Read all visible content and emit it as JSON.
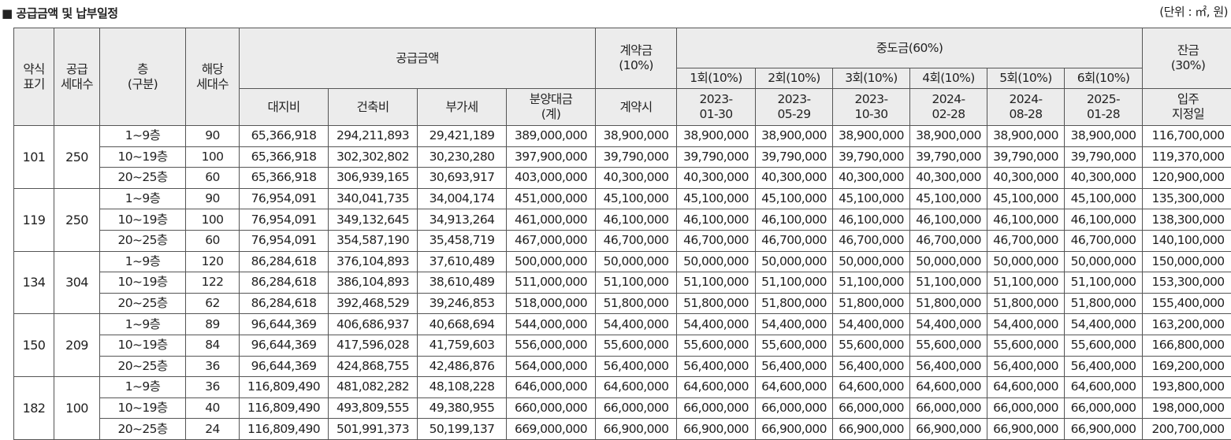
{
  "title": "■ 공급금액 및 납부일정",
  "unit": "(단위 : ㎡, 원)",
  "headers": {
    "type": "약식\n표기",
    "households": "공급\n세대수",
    "floor": "층\n(구분)",
    "units": "해당\n세대수",
    "supply": "공급금액",
    "land": "대지비",
    "building": "건축비",
    "vat": "부가세",
    "total": "분양대금\n(계)",
    "deposit": "계약금\n(10%)",
    "deposit_when": "계약시",
    "middle": "중도금(60%)",
    "middle_items": [
      {
        "label": "1회(10%)",
        "date": "2023-\n01-30"
      },
      {
        "label": "2회(10%)",
        "date": "2023-\n05-29"
      },
      {
        "label": "3회(10%)",
        "date": "2023-\n10-30"
      },
      {
        "label": "4회(10%)",
        "date": "2024-\n02-28"
      },
      {
        "label": "5회(10%)",
        "date": "2024-\n08-28"
      },
      {
        "label": "6회(10%)",
        "date": "2025-\n01-28"
      }
    ],
    "balance": "잔금\n(30%)",
    "balance_when": "입주\n지정일"
  },
  "groups": [
    {
      "type": "101",
      "households": "250",
      "rows": [
        {
          "floor": "1~9층",
          "units": "90",
          "land": "65,366,918",
          "building": "294,211,893",
          "vat": "29,421,189",
          "total": "389,000,000",
          "deposit": "38,900,000",
          "middle": [
            "38,900,000",
            "38,900,000",
            "38,900,000",
            "38,900,000",
            "38,900,000",
            "38,900,000"
          ],
          "balance": "116,700,000"
        },
        {
          "floor": "10~19층",
          "units": "100",
          "land": "65,366,918",
          "building": "302,302,802",
          "vat": "30,230,280",
          "total": "397,900,000",
          "deposit": "39,790,000",
          "middle": [
            "39,790,000",
            "39,790,000",
            "39,790,000",
            "39,790,000",
            "39,790,000",
            "39,790,000"
          ],
          "balance": "119,370,000"
        },
        {
          "floor": "20~25층",
          "units": "60",
          "land": "65,366,918",
          "building": "306,939,165",
          "vat": "30,693,917",
          "total": "403,000,000",
          "deposit": "40,300,000",
          "middle": [
            "40,300,000",
            "40,300,000",
            "40,300,000",
            "40,300,000",
            "40,300,000",
            "40,300,000"
          ],
          "balance": "120,900,000"
        }
      ]
    },
    {
      "type": "119",
      "households": "250",
      "rows": [
        {
          "floor": "1~9층",
          "units": "90",
          "land": "76,954,091",
          "building": "340,041,735",
          "vat": "34,004,174",
          "total": "451,000,000",
          "deposit": "45,100,000",
          "middle": [
            "45,100,000",
            "45,100,000",
            "45,100,000",
            "45,100,000",
            "45,100,000",
            "45,100,000"
          ],
          "balance": "135,300,000"
        },
        {
          "floor": "10~19층",
          "units": "100",
          "land": "76,954,091",
          "building": "349,132,645",
          "vat": "34,913,264",
          "total": "461,000,000",
          "deposit": "46,100,000",
          "middle": [
            "46,100,000",
            "46,100,000",
            "46,100,000",
            "46,100,000",
            "46,100,000",
            "46,100,000"
          ],
          "balance": "138,300,000"
        },
        {
          "floor": "20~25층",
          "units": "60",
          "land": "76,954,091",
          "building": "354,587,190",
          "vat": "35,458,719",
          "total": "467,000,000",
          "deposit": "46,700,000",
          "middle": [
            "46,700,000",
            "46,700,000",
            "46,700,000",
            "46,700,000",
            "46,700,000",
            "46,700,000"
          ],
          "balance": "140,100,000"
        }
      ]
    },
    {
      "type": "134",
      "households": "304",
      "rows": [
        {
          "floor": "1~9층",
          "units": "120",
          "land": "86,284,618",
          "building": "376,104,893",
          "vat": "37,610,489",
          "total": "500,000,000",
          "deposit": "50,000,000",
          "middle": [
            "50,000,000",
            "50,000,000",
            "50,000,000",
            "50,000,000",
            "50,000,000",
            "50,000,000"
          ],
          "balance": "150,000,000"
        },
        {
          "floor": "10~19층",
          "units": "122",
          "land": "86,284,618",
          "building": "386,104,893",
          "vat": "38,610,489",
          "total": "511,000,000",
          "deposit": "51,100,000",
          "middle": [
            "51,100,000",
            "51,100,000",
            "51,100,000",
            "51,100,000",
            "51,100,000",
            "51,100,000"
          ],
          "balance": "153,300,000"
        },
        {
          "floor": "20~25층",
          "units": "62",
          "land": "86,284,618",
          "building": "392,468,529",
          "vat": "39,246,853",
          "total": "518,000,000",
          "deposit": "51,800,000",
          "middle": [
            "51,800,000",
            "51,800,000",
            "51,800,000",
            "51,800,000",
            "51,800,000",
            "51,800,000"
          ],
          "balance": "155,400,000"
        }
      ]
    },
    {
      "type": "150",
      "households": "209",
      "rows": [
        {
          "floor": "1~9층",
          "units": "89",
          "land": "96,644,369",
          "building": "406,686,937",
          "vat": "40,668,694",
          "total": "544,000,000",
          "deposit": "54,400,000",
          "middle": [
            "54,400,000",
            "54,400,000",
            "54,400,000",
            "54,400,000",
            "54,400,000",
            "54,400,000"
          ],
          "balance": "163,200,000"
        },
        {
          "floor": "10~19층",
          "units": "84",
          "land": "96,644,369",
          "building": "417,596,028",
          "vat": "41,759,603",
          "total": "556,000,000",
          "deposit": "55,600,000",
          "middle": [
            "55,600,000",
            "55,600,000",
            "55,600,000",
            "55,600,000",
            "55,600,000",
            "55,600,000"
          ],
          "balance": "166,800,000"
        },
        {
          "floor": "20~25층",
          "units": "36",
          "land": "96,644,369",
          "building": "424,868,755",
          "vat": "42,486,876",
          "total": "564,000,000",
          "deposit": "56,400,000",
          "middle": [
            "56,400,000",
            "56,400,000",
            "56,400,000",
            "56,400,000",
            "56,400,000",
            "56,400,000"
          ],
          "balance": "169,200,000"
        }
      ]
    },
    {
      "type": "182",
      "households": "100",
      "rows": [
        {
          "floor": "1~9층",
          "units": "36",
          "land": "116,809,490",
          "building": "481,082,282",
          "vat": "48,108,228",
          "total": "646,000,000",
          "deposit": "64,600,000",
          "middle": [
            "64,600,000",
            "64,600,000",
            "64,600,000",
            "64,600,000",
            "64,600,000",
            "64,600,000"
          ],
          "balance": "193,800,000"
        },
        {
          "floor": "10~19층",
          "units": "40",
          "land": "116,809,490",
          "building": "493,809,555",
          "vat": "49,380,955",
          "total": "660,000,000",
          "deposit": "66,000,000",
          "middle": [
            "66,000,000",
            "66,000,000",
            "66,000,000",
            "66,000,000",
            "66,000,000",
            "66,000,000"
          ],
          "balance": "198,000,000"
        },
        {
          "floor": "20~25층",
          "units": "24",
          "land": "116,809,490",
          "building": "501,991,373",
          "vat": "50,199,137",
          "total": "669,000,000",
          "deposit": "66,900,000",
          "middle": [
            "66,900,000",
            "66,900,000",
            "66,900,000",
            "66,900,000",
            "66,900,000",
            "66,900,000"
          ],
          "balance": "200,700,000"
        }
      ]
    }
  ]
}
